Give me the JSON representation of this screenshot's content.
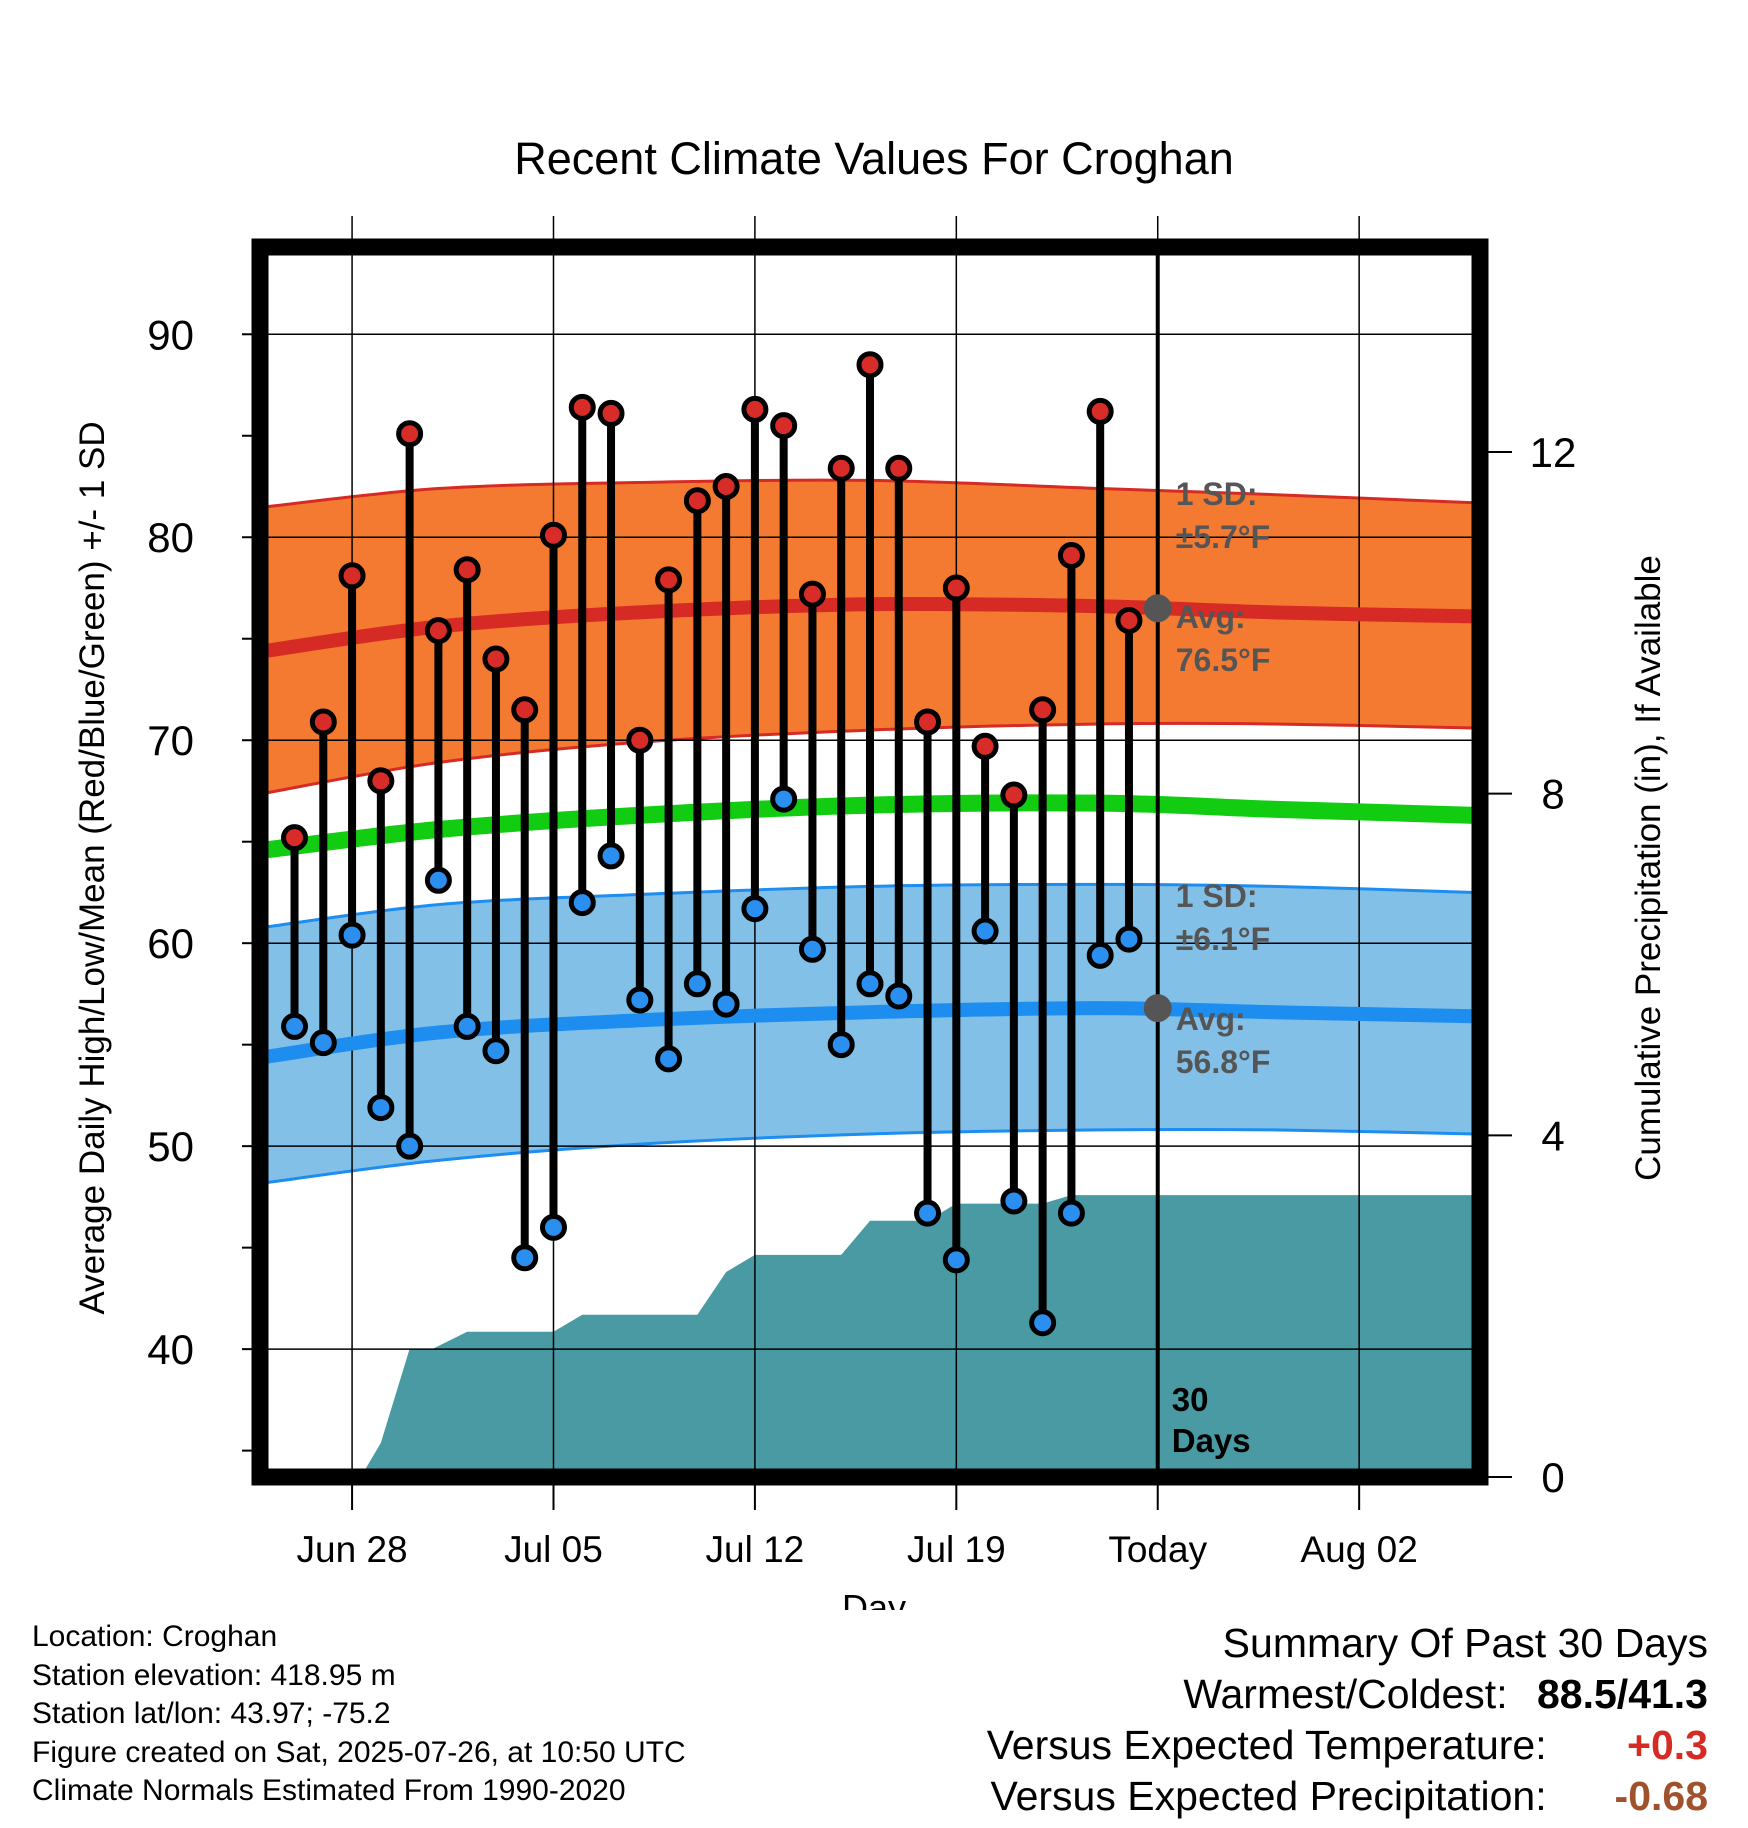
{
  "colors": {
    "high_band": "#f47a31",
    "high_line": "#d62b24",
    "low_band": "#82c0e8",
    "low_line": "#1e8df0",
    "mean_line": "#11cc11",
    "precip": "#4a9aa3",
    "high_dot": "#d72c27",
    "low_dot": "#2a8fef",
    "sd_text": "#555555",
    "temp_anomaly": "#d62b24",
    "precip_anomaly": "#a0522d"
  },
  "chart_data": {
    "type": "line",
    "title": "Recent Climate Values For Croghan",
    "xlabel": "Day",
    "ylabel": "Average Daily High/Low/Mean (Red/Blue/Green) +/- 1 SD",
    "y2label": "Cumulative Precipitation (in), If Available",
    "xlim": [
      -1.2,
      41.2
    ],
    "ylim": [
      33.7,
      94.3
    ],
    "y2lim": [
      0,
      14.4
    ],
    "yticks": [
      40,
      50,
      60,
      70,
      80,
      90
    ],
    "y2ticks": [
      0,
      4,
      8,
      12
    ],
    "xticks": [
      {
        "x": 2,
        "label": "Jun 28"
      },
      {
        "x": 9,
        "label": "Jul 05"
      },
      {
        "x": 16,
        "label": "Jul 12"
      },
      {
        "x": 23,
        "label": "Jul 19"
      },
      {
        "x": 30,
        "label": "Today"
      },
      {
        "x": 37,
        "label": "Aug 02"
      }
    ],
    "today_x": 30,
    "today_label": "30 Days",
    "days": [
      0,
      1,
      2,
      3,
      4,
      5,
      6,
      7,
      8,
      9,
      10,
      11,
      12,
      13,
      14,
      15,
      16,
      17,
      18,
      19,
      20,
      21,
      22,
      23,
      24,
      25,
      26,
      27,
      28,
      29
    ],
    "highs": [
      65.2,
      70.9,
      78.1,
      68.0,
      85.1,
      75.4,
      78.4,
      74.0,
      71.5,
      80.1,
      86.4,
      86.1,
      70.0,
      77.9,
      81.8,
      82.5,
      86.3,
      85.5,
      77.2,
      83.4,
      88.5,
      83.4,
      70.9,
      77.5,
      69.7,
      67.3,
      71.5,
      79.1,
      86.2,
      75.9
    ],
    "lows": [
      55.9,
      55.1,
      60.4,
      51.9,
      50.0,
      63.1,
      55.9,
      54.7,
      44.5,
      46.0,
      62.0,
      64.3,
      57.2,
      54.3,
      58.0,
      57.0,
      61.7,
      67.1,
      59.7,
      55.0,
      58.0,
      57.4,
      46.7,
      44.4,
      60.6,
      47.3,
      41.3,
      46.7,
      59.4,
      60.2
    ],
    "normal_days": [
      -1,
      5,
      12,
      20,
      28,
      34,
      41
    ],
    "normal_high": [
      74.4,
      75.6,
      76.3,
      76.7,
      76.6,
      76.3,
      76.1
    ],
    "normal_high_upper": [
      81.5,
      82.4,
      82.7,
      82.8,
      82.4,
      82.1,
      81.7
    ],
    "normal_high_lower": [
      67.4,
      68.9,
      69.9,
      70.5,
      70.8,
      70.8,
      70.6
    ],
    "normal_mean": [
      64.6,
      65.6,
      66.3,
      66.8,
      66.9,
      66.6,
      66.3
    ],
    "normal_low": [
      54.4,
      55.6,
      56.2,
      56.6,
      56.8,
      56.6,
      56.4
    ],
    "normal_low_upper": [
      60.8,
      61.9,
      62.4,
      62.8,
      62.9,
      62.8,
      62.5
    ],
    "normal_low_lower": [
      48.2,
      49.3,
      50.1,
      50.6,
      50.8,
      50.8,
      50.6
    ],
    "precip_x": [
      -1,
      2.3,
      3,
      4,
      4.8,
      6,
      7,
      8,
      9,
      10,
      11,
      12,
      13,
      14,
      15,
      16,
      17,
      18,
      19,
      20,
      21,
      22,
      23,
      24,
      25,
      26,
      27,
      28,
      29,
      30,
      41
    ],
    "precip_cum": [
      0,
      0,
      0.4,
      1.5,
      1.5,
      1.7,
      1.7,
      1.7,
      1.7,
      1.9,
      1.9,
      1.9,
      1.9,
      1.9,
      2.4,
      2.6,
      2.6,
      2.6,
      2.6,
      3.0,
      3.0,
      3.0,
      3.2,
      3.2,
      3.2,
      3.2,
      3.3,
      3.3,
      3.3,
      3.3,
      3.3
    ],
    "annotations": {
      "high_sd_title": "1 SD:",
      "high_sd_value": "±5.7°F",
      "high_avg_title": "Avg:",
      "high_avg_value": "76.5°F",
      "low_sd_title": "1 SD:",
      "low_sd_value": "±6.1°F",
      "low_avg_title": "Avg:",
      "low_avg_value": "56.8°F",
      "high_avg": 76.5,
      "low_avg": 56.8
    },
    "grid": true
  },
  "info": {
    "location": "Location: Croghan",
    "elevation": "Station elevation: 418.95 m",
    "latlon": "Station lat/lon: 43.97; -75.2",
    "created": "Figure created on Sat, 2025-07-26, at 10:50 UTC",
    "normals": "Climate Normals Estimated From 1990-2020"
  },
  "summary": {
    "title": "Summary Of Past 30 Days",
    "warm_cold_label": "Warmest/Coldest:",
    "warm_cold_value": "88.5/41.3",
    "temp_label": "Versus Expected Temperature:",
    "temp_value": "+0.3",
    "precip_label": "Versus Expected Precipitation:",
    "precip_value": "-0.68"
  }
}
